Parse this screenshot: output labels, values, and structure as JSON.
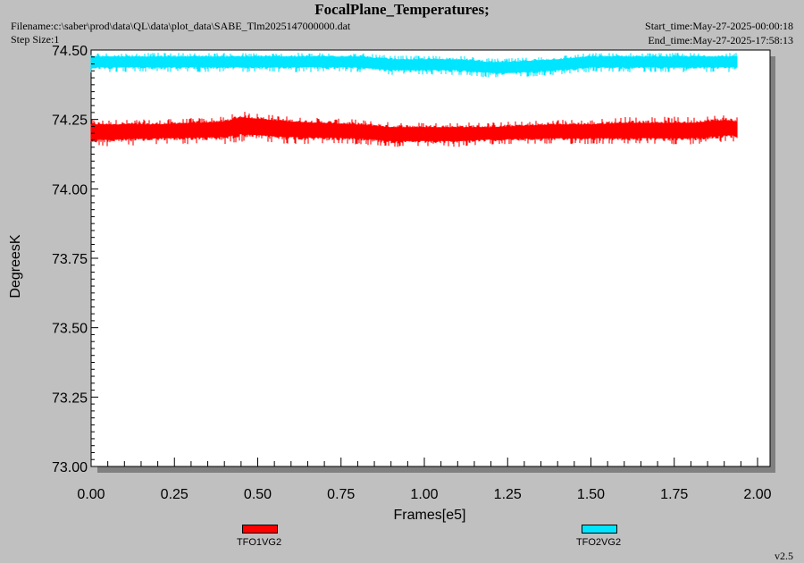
{
  "header": {
    "title": "FocalPlane_Temperatures;",
    "filename": "Filename:c:\\saber\\prod\\data\\QL\\data\\plot_data\\SABE_Tlm2025147000000.dat",
    "step_size": "Step Size:1",
    "start_time": "Start_time:May-27-2025-00:00:18",
    "end_time": "End_time:May-27-2025-17:58:13"
  },
  "footer": {
    "version": "v2.5"
  },
  "chart_data": {
    "type": "line",
    "xlabel": "Frames[e5]",
    "ylabel": "DegreesK",
    "xlim": [
      0.0,
      2.0
    ],
    "ylim": [
      73.0,
      74.5
    ],
    "xticks": [
      "0.00",
      "0.25",
      "0.50",
      "0.75",
      "1.00",
      "1.25",
      "1.50",
      "1.75",
      "2.00"
    ],
    "yticks": [
      "74.50",
      "74.25",
      "74.00",
      "73.75",
      "73.50",
      "73.25",
      "73.00"
    ],
    "grid": false,
    "legend_position": "bottom",
    "series": [
      {
        "name": "TFO1VG2",
        "color": "#ff0000",
        "x": [
          0.0,
          0.2,
          0.4,
          0.45,
          0.6,
          0.8,
          0.9,
          1.0,
          1.1,
          1.2,
          1.4,
          1.5,
          1.6,
          1.8,
          1.9,
          1.94
        ],
        "y": [
          74.21,
          74.21,
          74.22,
          74.23,
          74.22,
          74.21,
          74.2,
          74.2,
          74.2,
          74.2,
          74.21,
          74.21,
          74.21,
          74.21,
          74.22,
          74.22
        ],
        "y_min": [
          74.15,
          74.16,
          74.16,
          74.17,
          74.16,
          74.16,
          74.15,
          74.15,
          74.15,
          74.16,
          74.16,
          74.16,
          74.16,
          74.16,
          74.17,
          74.17
        ],
        "y_max": [
          74.25,
          74.25,
          74.26,
          74.28,
          74.26,
          74.25,
          74.24,
          74.24,
          74.24,
          74.24,
          74.25,
          74.25,
          74.26,
          74.26,
          74.27,
          74.26
        ]
      },
      {
        "name": "TFO2VG2",
        "color": "#00e5ff",
        "x": [
          0.0,
          0.2,
          0.4,
          0.6,
          0.8,
          0.9,
          1.0,
          1.1,
          1.2,
          1.25,
          1.4,
          1.5,
          1.6,
          1.8,
          1.94
        ],
        "y": [
          74.46,
          74.46,
          74.46,
          74.46,
          74.46,
          74.45,
          74.45,
          74.45,
          74.44,
          74.44,
          74.45,
          74.46,
          74.46,
          74.46,
          74.46
        ],
        "y_min": [
          74.42,
          74.42,
          74.42,
          74.42,
          74.42,
          74.41,
          74.41,
          74.41,
          74.4,
          74.4,
          74.41,
          74.42,
          74.42,
          74.42,
          74.42
        ],
        "y_max": [
          74.49,
          74.49,
          74.49,
          74.49,
          74.49,
          74.48,
          74.48,
          74.48,
          74.47,
          74.47,
          74.48,
          74.49,
          74.49,
          74.49,
          74.49
        ]
      }
    ]
  }
}
